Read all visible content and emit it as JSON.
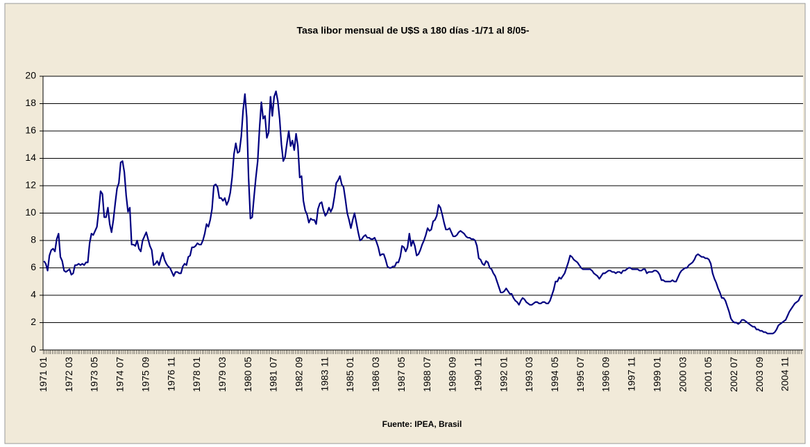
{
  "chart_data": {
    "type": "line",
    "title": "Tasa libor mensual de U$S a 180 días -1/71 al 8/05-",
    "source": "Fuente: IPEA, Brasil",
    "color": "#000080",
    "grid": true,
    "ylim": [
      0,
      20
    ],
    "yticks": [
      0,
      2,
      4,
      6,
      8,
      10,
      12,
      14,
      16,
      18,
      20
    ],
    "categories": [
      "1971 01",
      null,
      null,
      null,
      null,
      null,
      null,
      null,
      null,
      null,
      null,
      null,
      null,
      null,
      "1972 03",
      null,
      null,
      null,
      null,
      null,
      null,
      null,
      null,
      null,
      null,
      null,
      null,
      null,
      "1973 05",
      null,
      null,
      null,
      null,
      null,
      null,
      null,
      null,
      null,
      null,
      null,
      null,
      null,
      "1974 07",
      null,
      null,
      null,
      null,
      null,
      null,
      null,
      null,
      null,
      null,
      null,
      null,
      null,
      "1975 09",
      null,
      null,
      null,
      null,
      null,
      null,
      null,
      null,
      null,
      null,
      null,
      null,
      null,
      "1976 11",
      null,
      null,
      null,
      null,
      null,
      null,
      null,
      null,
      null,
      null,
      null,
      null,
      null,
      "1978 01",
      null,
      null,
      null,
      null,
      null,
      null,
      null,
      null,
      null,
      null,
      null,
      null,
      null,
      "1979 03",
      null,
      null,
      null,
      null,
      null,
      null,
      null,
      null,
      null,
      null,
      null,
      null,
      null,
      "1980 05",
      null,
      null,
      null,
      null,
      null,
      null,
      null,
      null,
      null,
      null,
      null,
      null,
      null,
      "1981 07",
      null,
      null,
      null,
      null,
      null,
      null,
      null,
      null,
      null,
      null,
      null,
      null,
      null,
      "1982 09",
      null,
      null,
      null,
      null,
      null,
      null,
      null,
      null,
      null,
      null,
      null,
      null,
      null,
      "1983 11",
      null,
      null,
      null,
      null,
      null,
      null,
      null,
      null,
      null,
      null,
      null,
      null,
      null,
      "1985 01",
      null,
      null,
      null,
      null,
      null,
      null,
      null,
      null,
      null,
      null,
      null,
      null,
      null,
      "1986 03",
      null,
      null,
      null,
      null,
      null,
      null,
      null,
      null,
      null,
      null,
      null,
      null,
      null,
      "1987 05",
      null,
      null,
      null,
      null,
      null,
      null,
      null,
      null,
      null,
      null,
      null,
      null,
      null,
      "1988 07",
      null,
      null,
      null,
      null,
      null,
      null,
      null,
      null,
      null,
      null,
      null,
      null,
      null,
      "1989 09",
      null,
      null,
      null,
      null,
      null,
      null,
      null,
      null,
      null,
      null,
      null,
      null,
      null,
      "1990 11",
      null,
      null,
      null,
      null,
      null,
      null,
      null,
      null,
      null,
      null,
      null,
      null,
      null,
      "1992 01",
      null,
      null,
      null,
      null,
      null,
      null,
      null,
      null,
      null,
      null,
      null,
      null,
      null,
      "1993 03",
      null,
      null,
      null,
      null,
      null,
      null,
      null,
      null,
      null,
      null,
      null,
      null,
      null,
      "1994 05",
      null,
      null,
      null,
      null,
      null,
      null,
      null,
      null,
      null,
      null,
      null,
      null,
      null,
      "1995 07",
      null,
      null,
      null,
      null,
      null,
      null,
      null,
      null,
      null,
      null,
      null,
      null,
      null,
      "1996 09",
      null,
      null,
      null,
      null,
      null,
      null,
      null,
      null,
      null,
      null,
      null,
      null,
      null,
      "1997 11",
      null,
      null,
      null,
      null,
      null,
      null,
      null,
      null,
      null,
      null,
      null,
      null,
      null,
      "1999 01",
      null,
      null,
      null,
      null,
      null,
      null,
      null,
      null,
      null,
      null,
      null,
      null,
      null,
      "2000 03",
      null,
      null,
      null,
      null,
      null,
      null,
      null,
      null,
      null,
      null,
      null,
      null,
      null,
      "2001 05",
      null,
      null,
      null,
      null,
      null,
      null,
      null,
      null,
      null,
      null,
      null,
      null,
      null,
      "2002 07",
      null,
      null,
      null,
      null,
      null,
      null,
      null,
      null,
      null,
      null,
      null,
      null,
      null,
      "2003 09",
      null,
      null,
      null,
      null,
      null,
      null,
      null,
      null,
      null,
      null,
      null,
      null,
      null,
      "2004 11",
      null,
      null,
      null,
      null,
      null,
      null,
      null,
      null,
      null
    ],
    "values": [
      6.5,
      6.3,
      5.8,
      6.9,
      7.3,
      7.4,
      7.2,
      8.1,
      8.5,
      6.8,
      6.5,
      5.8,
      5.7,
      5.8,
      5.9,
      5.5,
      5.6,
      6.2,
      6.2,
      6.3,
      6.2,
      6.3,
      6.2,
      6.4,
      6.4,
      7.8,
      8.5,
      8.4,
      8.7,
      9.0,
      10.2,
      11.6,
      11.4,
      9.7,
      9.7,
      10.4,
      9.2,
      8.6,
      9.5,
      10.7,
      11.8,
      12.2,
      13.7,
      13.8,
      13.0,
      11.3,
      10.1,
      10.4,
      7.7,
      7.7,
      7.6,
      8.0,
      7.4,
      7.2,
      8.0,
      8.3,
      8.6,
      8.1,
      7.6,
      7.3,
      6.2,
      6.3,
      6.5,
      6.2,
      6.7,
      7.1,
      6.6,
      6.3,
      6.1,
      6.0,
      5.7,
      5.4,
      5.7,
      5.7,
      5.6,
      5.6,
      6.1,
      6.3,
      6.2,
      6.8,
      6.9,
      7.5,
      7.5,
      7.6,
      7.8,
      7.7,
      7.7,
      8.0,
      8.5,
      9.2,
      9.0,
      9.5,
      10.3,
      12.0,
      12.1,
      11.9,
      11.1,
      11.1,
      10.9,
      11.1,
      10.6,
      10.9,
      11.5,
      12.6,
      14.3,
      15.1,
      14.4,
      14.5,
      15.6,
      17.5,
      18.7,
      17.0,
      12.6,
      9.6,
      9.7,
      11.2,
      12.6,
      13.8,
      16.2,
      18.1,
      16.9,
      17.1,
      15.5,
      15.9,
      18.5,
      17.1,
      18.5,
      18.9,
      18.2,
      16.9,
      15.0,
      13.8,
      14.1,
      15.1,
      16.0,
      14.9,
      15.3,
      14.6,
      15.8,
      14.9,
      12.6,
      12.7,
      10.9,
      10.2,
      9.9,
      9.3,
      9.6,
      9.5,
      9.5,
      9.2,
      10.3,
      10.7,
      10.8,
      10.2,
      9.8,
      10.0,
      10.4,
      10.1,
      10.4,
      11.2,
      12.2,
      12.4,
      12.7,
      12.1,
      11.9,
      11.0,
      10.0,
      9.5,
      8.9,
      9.5,
      10.0,
      9.3,
      8.6,
      8.0,
      8.1,
      8.3,
      8.4,
      8.2,
      8.2,
      8.1,
      8.1,
      8.2,
      7.9,
      7.5,
      6.9,
      7.0,
      7.0,
      6.6,
      6.1,
      6.0,
      6.0,
      6.1,
      6.1,
      6.4,
      6.4,
      6.8,
      7.6,
      7.5,
      7.2,
      7.5,
      8.5,
      7.6,
      8.0,
      7.6,
      6.9,
      7.0,
      7.3,
      7.7,
      8.0,
      8.4,
      8.9,
      8.7,
      8.8,
      9.4,
      9.5,
      9.8,
      10.6,
      10.4,
      9.9,
      9.3,
      8.8,
      8.8,
      8.9,
      8.6,
      8.3,
      8.3,
      8.4,
      8.6,
      8.7,
      8.6,
      8.5,
      8.3,
      8.2,
      8.2,
      8.1,
      8.1,
      8.0,
      7.6,
      6.7,
      6.6,
      6.3,
      6.2,
      6.5,
      6.4,
      6.0,
      5.9,
      5.6,
      5.4,
      5.0,
      4.6,
      4.2,
      4.2,
      4.3,
      4.5,
      4.3,
      4.1,
      4.1,
      3.8,
      3.6,
      3.5,
      3.3,
      3.6,
      3.8,
      3.7,
      3.5,
      3.4,
      3.3,
      3.3,
      3.4,
      3.5,
      3.5,
      3.4,
      3.4,
      3.5,
      3.5,
      3.4,
      3.4,
      3.6,
      4.0,
      4.4,
      5.0,
      5.0,
      5.3,
      5.2,
      5.4,
      5.6,
      6.0,
      6.4,
      6.9,
      6.8,
      6.6,
      6.5,
      6.4,
      6.2,
      6.0,
      5.9,
      5.9,
      5.9,
      5.9,
      5.9,
      5.8,
      5.6,
      5.5,
      5.4,
      5.2,
      5.4,
      5.6,
      5.6,
      5.7,
      5.8,
      5.8,
      5.7,
      5.7,
      5.6,
      5.7,
      5.7,
      5.6,
      5.8,
      5.8,
      5.9,
      6.0,
      6.0,
      5.9,
      5.9,
      5.9,
      5.9,
      5.8,
      5.8,
      5.9,
      5.9,
      5.6,
      5.7,
      5.7,
      5.7,
      5.8,
      5.8,
      5.7,
      5.5,
      5.1,
      5.1,
      5.0,
      5.0,
      5.0,
      5.0,
      5.1,
      5.0,
      5.0,
      5.3,
      5.6,
      5.8,
      5.9,
      6.0,
      6.0,
      6.2,
      6.3,
      6.4,
      6.6,
      6.9,
      7.0,
      6.9,
      6.8,
      6.8,
      6.7,
      6.7,
      6.6,
      6.3,
      5.6,
      5.2,
      4.9,
      4.5,
      4.2,
      3.8,
      3.8,
      3.6,
      3.2,
      2.8,
      2.3,
      2.1,
      2.0,
      2.0,
      1.9,
      2.0,
      2.2,
      2.2,
      2.1,
      2.0,
      1.9,
      1.8,
      1.7,
      1.7,
      1.5,
      1.5,
      1.4,
      1.4,
      1.3,
      1.3,
      1.2,
      1.2,
      1.2,
      1.2,
      1.3,
      1.5,
      1.8,
      1.9,
      2.0,
      2.1,
      2.2,
      2.5,
      2.8,
      3.0,
      3.2,
      3.4,
      3.5,
      3.6,
      3.9,
      4.0
    ]
  }
}
